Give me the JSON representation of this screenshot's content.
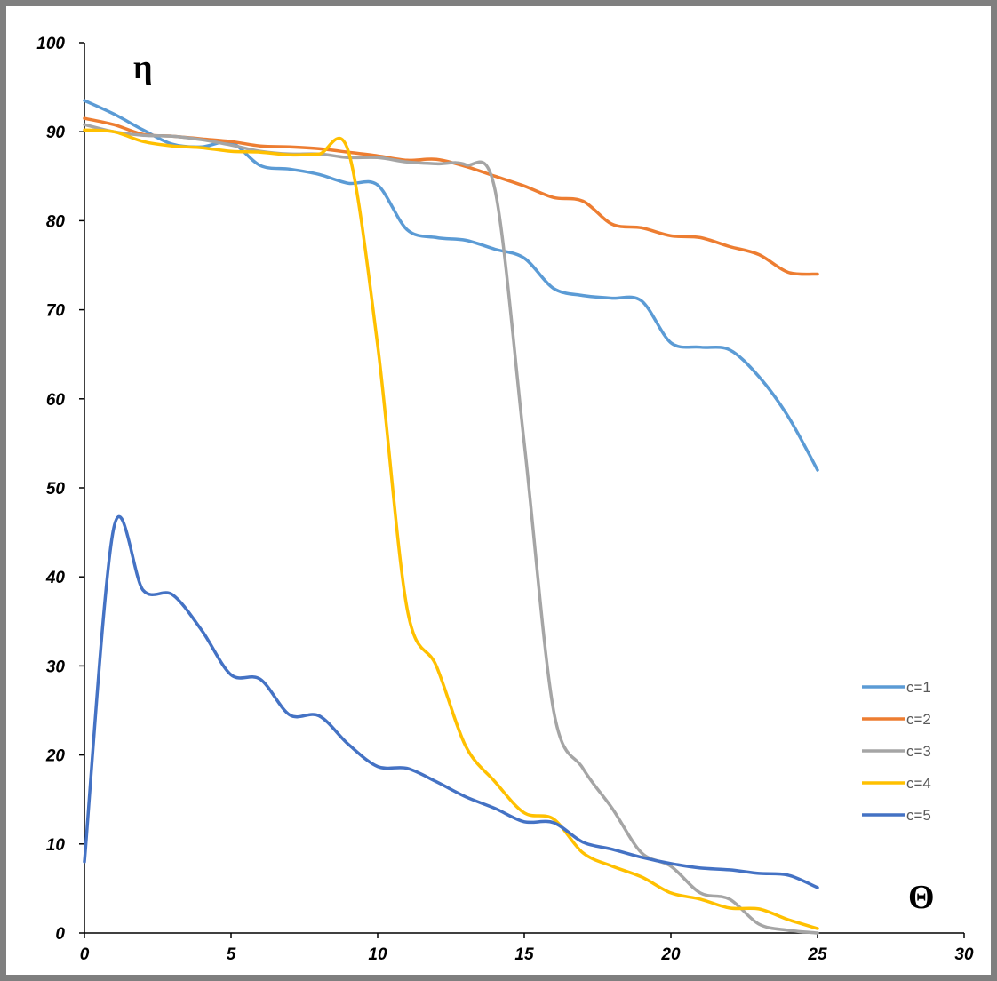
{
  "chart_data": {
    "type": "line",
    "xlabel": "Θ",
    "ylabel": "η",
    "xlim": [
      0,
      30
    ],
    "ylim": [
      0,
      100
    ],
    "x_ticks": [
      "0",
      "5",
      "10",
      "15",
      "20",
      "25",
      "30"
    ],
    "y_ticks": [
      "0",
      "10",
      "20",
      "30",
      "40",
      "50",
      "60",
      "70",
      "80",
      "90",
      "100"
    ],
    "grid": false,
    "legend_position": "right",
    "x": [
      0,
      1,
      2,
      3,
      4,
      5,
      6,
      7,
      8,
      9,
      10,
      11,
      12,
      13,
      14,
      15,
      16,
      17,
      18,
      19,
      20,
      21,
      22,
      23,
      24,
      25
    ],
    "series": [
      {
        "name": "c=1",
        "color": "#5b9bd5",
        "values": [
          93.5,
          92,
          90.2,
          88.6,
          88.3,
          88.8,
          86.2,
          85.8,
          85.2,
          84.2,
          84,
          79,
          78.1,
          77.8,
          76.8,
          75.8,
          72.4,
          71.6,
          71.3,
          71,
          66.3,
          65.8,
          65.5,
          62.5,
          58,
          52
        ]
      },
      {
        "name": "c=2",
        "color": "#ed7d31",
        "values": [
          91.5,
          90.8,
          89.7,
          89.5,
          89.2,
          88.9,
          88.4,
          88.3,
          88.1,
          87.7,
          87.3,
          86.8,
          86.9,
          86.1,
          85,
          83.9,
          82.6,
          82.2,
          79.6,
          79.2,
          78.3,
          78.1,
          77.1,
          76.2,
          74.2,
          74
        ]
      },
      {
        "name": "c=3",
        "color": "#a5a5a5",
        "values": [
          90.8,
          90,
          89.6,
          89.5,
          89.1,
          88.5,
          87.8,
          87.5,
          87.5,
          87.1,
          87.1,
          86.6,
          86.4,
          86.3,
          83.5,
          55,
          25,
          18.5,
          14,
          9,
          7.5,
          4.5,
          3.8,
          1,
          0.3,
          0
        ]
      },
      {
        "name": "c=4",
        "color": "#ffc000",
        "values": [
          90.2,
          90,
          88.9,
          88.4,
          88.2,
          87.8,
          87.7,
          87.4,
          87.5,
          87.8,
          66,
          36.5,
          30,
          21,
          17,
          13.5,
          12.8,
          9,
          7.5,
          6.3,
          4.5,
          3.8,
          2.8,
          2.7,
          1.5,
          0.5
        ]
      },
      {
        "name": "c=5",
        "color": "#4472c4",
        "values": [
          8,
          45.5,
          38.5,
          38,
          34,
          29,
          28.5,
          24.5,
          24.4,
          21.2,
          18.7,
          18.5,
          17,
          15.3,
          14,
          12.5,
          12.4,
          10.2,
          9.4,
          8.5,
          7.8,
          7.3,
          7.1,
          6.7,
          6.5,
          5.1
        ]
      }
    ]
  }
}
